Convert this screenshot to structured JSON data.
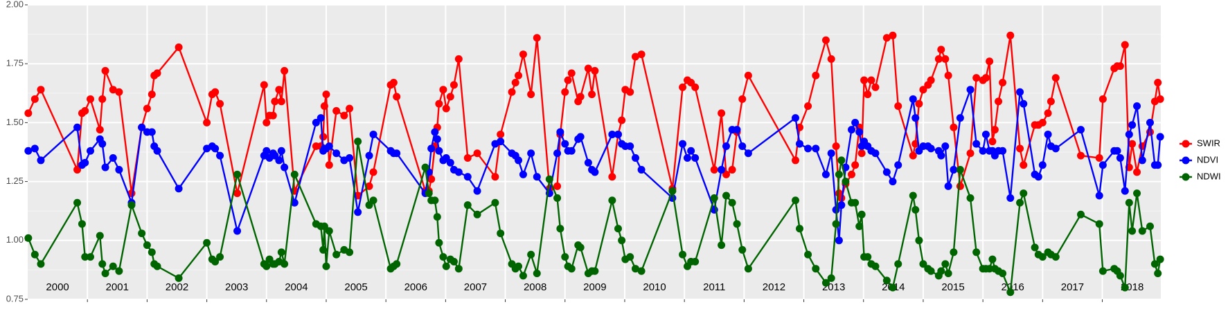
{
  "chart_data": {
    "type": "line",
    "x": [
      2000.01,
      2000.12,
      2000.22,
      2000.83,
      2000.91,
      2000.96,
      2001.05,
      2001.21,
      2001.25,
      2001.3,
      2001.43,
      2001.53,
      2001.74,
      2001.91,
      2002.0,
      2002.08,
      2002.12,
      2002.17,
      2002.53,
      2003.0,
      2003.09,
      2003.14,
      2003.22,
      2003.51,
      2003.96,
      2004.0,
      2004.05,
      2004.11,
      2004.14,
      2004.21,
      2004.25,
      2004.3,
      2004.47,
      2004.83,
      2004.91,
      2004.95,
      2004.97,
      2005.0,
      2005.05,
      2005.17,
      2005.3,
      2005.39,
      2005.53,
      2005.72,
      2005.79,
      2006.08,
      2006.13,
      2006.18,
      2006.66,
      2006.72,
      2006.76,
      2006.82,
      2006.86,
      2006.89,
      2006.96,
      2007.01,
      2007.08,
      2007.14,
      2007.22,
      2007.37,
      2007.53,
      2007.83,
      2007.92,
      2008.11,
      2008.17,
      2008.22,
      2008.3,
      2008.43,
      2008.53,
      2008.74,
      2008.87,
      2008.92,
      2009.0,
      2009.05,
      2009.11,
      2009.22,
      2009.26,
      2009.39,
      2009.45,
      2009.5,
      2009.79,
      2009.89,
      2009.95,
      2010.01,
      2010.09,
      2010.18,
      2010.28,
      2010.8,
      2010.97,
      2011.05,
      2011.11,
      2011.18,
      2011.5,
      2011.62,
      2011.7,
      2011.8,
      2011.88,
      2011.97,
      2012.07,
      2012.86,
      2012.93,
      2013.07,
      2013.2,
      2013.37,
      2013.46,
      2013.54,
      2013.59,
      2013.63,
      2013.7,
      2013.8,
      2013.86,
      2013.93,
      2013.97,
      2014.01,
      2014.07,
      2014.13,
      2014.2,
      2014.39,
      2014.49,
      2014.58,
      2014.83,
      2014.87,
      2014.93,
      2015.0,
      2015.08,
      2015.13,
      2015.26,
      2015.3,
      2015.37,
      2015.42,
      2015.51,
      2015.62,
      2015.79,
      2015.89,
      2016.0,
      2016.05,
      2016.11,
      2016.16,
      2016.2,
      2016.26,
      2016.33,
      2016.46,
      2016.62,
      2016.68,
      2016.87,
      2016.93,
      2017.0,
      2017.09,
      2017.14,
      2017.22,
      2017.64,
      2017.95,
      2018.01,
      2018.2,
      2018.25,
      2018.3,
      2018.38,
      2018.45,
      2018.5,
      2018.58,
      2018.67,
      2018.8,
      2018.88,
      2018.93,
      2018.97
    ],
    "series": [
      {
        "name": "SWIR",
        "color": "#ff0000",
        "values": [
          1.54,
          1.6,
          1.64,
          1.3,
          1.54,
          1.55,
          1.6,
          1.47,
          1.6,
          1.72,
          1.64,
          1.63,
          1.2,
          1.48,
          1.56,
          1.62,
          1.7,
          1.71,
          1.82,
          1.5,
          1.62,
          1.63,
          1.58,
          1.2,
          1.66,
          1.5,
          1.53,
          1.53,
          1.59,
          1.64,
          1.59,
          1.72,
          1.21,
          1.4,
          1.4,
          1.44,
          1.57,
          1.62,
          1.32,
          1.55,
          1.53,
          1.56,
          1.19,
          1.23,
          1.29,
          1.66,
          1.67,
          1.61,
          1.21,
          1.21,
          1.26,
          1.4,
          1.48,
          1.58,
          1.64,
          1.56,
          1.61,
          1.66,
          1.77,
          1.35,
          1.37,
          1.27,
          1.45,
          1.63,
          1.67,
          1.7,
          1.79,
          1.62,
          1.86,
          1.22,
          1.23,
          1.45,
          1.63,
          1.68,
          1.71,
          1.59,
          1.61,
          1.73,
          1.62,
          1.72,
          1.27,
          1.45,
          1.51,
          1.64,
          1.63,
          1.78,
          1.79,
          1.22,
          1.65,
          1.68,
          1.67,
          1.65,
          1.3,
          1.54,
          1.28,
          1.3,
          1.46,
          1.6,
          1.7,
          1.34,
          1.48,
          1.57,
          1.7,
          1.85,
          1.77,
          1.4,
          1.2,
          1.18,
          1.24,
          1.28,
          1.32,
          1.48,
          1.37,
          1.68,
          1.62,
          1.68,
          1.65,
          1.86,
          1.87,
          1.57,
          1.36,
          1.41,
          1.58,
          1.64,
          1.66,
          1.68,
          1.77,
          1.81,
          1.77,
          1.7,
          1.48,
          1.23,
          1.37,
          1.69,
          1.68,
          1.69,
          1.76,
          1.42,
          1.47,
          1.59,
          1.67,
          1.87,
          1.39,
          1.32,
          1.49,
          1.49,
          1.5,
          1.54,
          1.59,
          1.69,
          1.36,
          1.35,
          1.6,
          1.73,
          1.74,
          1.74,
          1.83,
          1.31,
          1.41,
          1.29,
          1.4,
          1.46,
          1.59,
          1.67,
          1.6
        ]
      },
      {
        "name": "NDVI",
        "color": "#0000ff",
        "values": [
          1.38,
          1.39,
          1.34,
          1.48,
          1.32,
          1.33,
          1.38,
          1.43,
          1.41,
          1.31,
          1.35,
          1.3,
          1.16,
          1.48,
          1.46,
          1.46,
          1.4,
          1.38,
          1.22,
          1.39,
          1.4,
          1.39,
          1.36,
          1.04,
          1.36,
          1.38,
          1.35,
          1.37,
          1.36,
          1.34,
          1.38,
          1.31,
          1.16,
          1.5,
          1.52,
          1.38,
          1.39,
          1.39,
          1.4,
          1.37,
          1.34,
          1.35,
          1.12,
          1.36,
          1.45,
          1.38,
          1.37,
          1.37,
          1.2,
          1.29,
          1.39,
          1.46,
          1.43,
          1.38,
          1.34,
          1.35,
          1.33,
          1.3,
          1.29,
          1.27,
          1.21,
          1.41,
          1.42,
          1.37,
          1.36,
          1.34,
          1.28,
          1.37,
          1.27,
          1.2,
          1.37,
          1.46,
          1.41,
          1.38,
          1.38,
          1.43,
          1.44,
          1.33,
          1.3,
          1.29,
          1.45,
          1.45,
          1.41,
          1.4,
          1.4,
          1.35,
          1.3,
          1.18,
          1.41,
          1.35,
          1.38,
          1.35,
          1.13,
          1.3,
          1.4,
          1.47,
          1.47,
          1.4,
          1.37,
          1.52,
          1.41,
          1.39,
          1.39,
          1.28,
          1.37,
          1.13,
          1.0,
          1.15,
          1.31,
          1.47,
          1.5,
          1.46,
          1.4,
          1.42,
          1.4,
          1.38,
          1.37,
          1.29,
          1.25,
          1.32,
          1.6,
          1.52,
          1.38,
          1.4,
          1.4,
          1.39,
          1.38,
          1.36,
          1.4,
          1.23,
          1.3,
          1.52,
          1.64,
          1.41,
          1.38,
          1.45,
          1.38,
          1.38,
          1.36,
          1.38,
          1.38,
          1.18,
          1.63,
          1.58,
          1.28,
          1.27,
          1.32,
          1.45,
          1.4,
          1.39,
          1.47,
          1.19,
          1.32,
          1.38,
          1.38,
          1.35,
          1.21,
          1.45,
          1.49,
          1.57,
          1.34,
          1.5,
          1.32,
          1.32,
          1.44
        ]
      },
      {
        "name": "NDWI",
        "color": "#006400",
        "values": [
          1.01,
          0.94,
          0.9,
          1.16,
          1.07,
          0.93,
          0.93,
          1.02,
          0.9,
          0.86,
          0.89,
          0.87,
          1.15,
          1.03,
          0.98,
          0.95,
          0.9,
          0.89,
          0.84,
          0.99,
          0.92,
          0.91,
          0.93,
          1.28,
          0.9,
          0.89,
          0.92,
          0.9,
          0.9,
          0.91,
          0.95,
          0.9,
          1.28,
          1.07,
          1.06,
          0.96,
          1.06,
          0.89,
          1.04,
          0.94,
          0.96,
          0.95,
          1.42,
          1.15,
          1.17,
          0.88,
          0.89,
          0.9,
          1.31,
          1.2,
          1.17,
          1.17,
          1.1,
          0.99,
          0.93,
          0.89,
          0.92,
          0.91,
          0.88,
          1.15,
          1.11,
          1.16,
          1.03,
          0.9,
          0.88,
          0.89,
          0.85,
          0.94,
          0.86,
          1.26,
          1.18,
          1.05,
          0.93,
          0.89,
          0.88,
          0.98,
          0.97,
          0.86,
          0.87,
          0.87,
          1.17,
          1.05,
          1.0,
          0.92,
          0.93,
          0.88,
          0.87,
          1.21,
          0.94,
          0.89,
          0.91,
          0.91,
          1.18,
          0.98,
          1.19,
          1.16,
          1.07,
          0.96,
          0.88,
          1.17,
          1.05,
          0.94,
          0.88,
          0.82,
          0.84,
          1.07,
          1.28,
          1.34,
          1.25,
          1.16,
          1.16,
          1.06,
          1.11,
          0.93,
          0.93,
          0.9,
          0.89,
          0.83,
          0.8,
          0.9,
          1.19,
          1.13,
          1.0,
          0.9,
          0.88,
          0.87,
          0.85,
          0.87,
          0.9,
          0.86,
          0.95,
          1.3,
          1.18,
          0.95,
          0.88,
          0.88,
          0.88,
          0.92,
          0.88,
          0.87,
          0.86,
          0.78,
          1.16,
          1.2,
          0.97,
          0.94,
          0.93,
          0.95,
          0.94,
          0.93,
          1.11,
          1.07,
          0.87,
          0.88,
          0.87,
          0.85,
          0.8,
          1.16,
          1.04,
          1.2,
          1.04,
          1.06,
          0.9,
          0.86,
          0.92
        ]
      }
    ],
    "xlim": [
      2000,
      2018.98
    ],
    "xticks": [
      2001,
      2002,
      2003,
      2004,
      2005,
      2006,
      2007,
      2008,
      2009,
      2010,
      2011,
      2012,
      2013,
      2014,
      2015,
      2016,
      2017,
      2018
    ],
    "year_labels": [
      2000,
      2001,
      2002,
      2003,
      2004,
      2005,
      2006,
      2007,
      2008,
      2009,
      2010,
      2011,
      2012,
      2013,
      2014,
      2015,
      2016,
      2017,
      2018
    ],
    "ylim": [
      0.75,
      2.0
    ],
    "yticks": [
      0.75,
      {
        "value": 1,
        "label": "1.00"
      },
      1.25,
      {
        "value": 1.5,
        "label": "1.50"
      },
      1.75,
      {
        "value": 2,
        "label": "2.00"
      }
    ],
    "grid": true,
    "legend": "right"
  }
}
